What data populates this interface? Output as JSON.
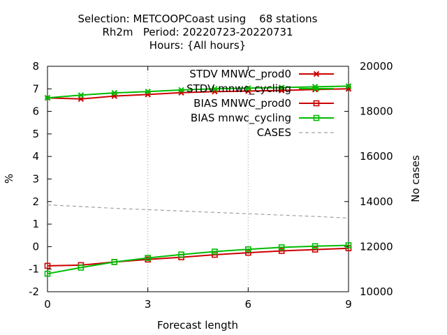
{
  "chart_data": {
    "type": "line",
    "title_lines": [
      "Selection: METCOOPCoast using    68 stations",
      "Rh2m   Period: 20220723-20220731",
      "Hours: {All hours}"
    ],
    "xlabel": "Forecast length",
    "ylabel": "%",
    "y2label": "No cases",
    "xlim": [
      0,
      9
    ],
    "ylim": [
      -2,
      8
    ],
    "y2lim": [
      10000,
      20000
    ],
    "xticks": [
      0,
      3,
      6,
      9
    ],
    "yticks": [
      -2,
      -1,
      0,
      1,
      2,
      3,
      4,
      5,
      6,
      7,
      8
    ],
    "y2ticks": [
      10000,
      12000,
      14000,
      16000,
      18000,
      20000
    ],
    "grid": "dotted at x ticks",
    "legend_position": "top-right",
    "x": [
      0,
      1,
      2,
      3,
      4,
      5,
      6,
      7,
      8,
      9
    ],
    "series": [
      {
        "name": "STDV MNWC_prod0",
        "axis": "y1",
        "color": "#cc0000",
        "marker": "x",
        "dash": "solid",
        "values": [
          6.6,
          6.55,
          6.68,
          6.75,
          6.83,
          6.88,
          6.9,
          6.93,
          6.97,
          7.0
        ]
      },
      {
        "name": "STDV mnwc_cycling",
        "axis": "y1",
        "color": "#00bb00",
        "marker": "x",
        "dash": "solid",
        "values": [
          6.6,
          6.72,
          6.82,
          6.88,
          6.95,
          7.0,
          7.03,
          7.06,
          7.09,
          7.12
        ]
      },
      {
        "name": "BIAS MNWC_prod0",
        "axis": "y1",
        "color": "#cc0000",
        "marker": "square",
        "dash": "solid",
        "values": [
          -0.85,
          -0.82,
          -0.68,
          -0.57,
          -0.47,
          -0.36,
          -0.27,
          -0.19,
          -0.13,
          -0.07
        ]
      },
      {
        "name": "BIAS mnwc_cycling",
        "axis": "y1",
        "color": "#00bb00",
        "marker": "square",
        "dash": "solid",
        "values": [
          -1.2,
          -0.93,
          -0.68,
          -0.5,
          -0.35,
          -0.22,
          -0.12,
          -0.03,
          0.02,
          0.06
        ]
      },
      {
        "name": "CASES",
        "axis": "y2",
        "color": "#a0a0a0",
        "marker": "none",
        "dash": "dashed",
        "values": [
          13850,
          13780,
          13700,
          13640,
          13580,
          13520,
          13460,
          13400,
          13340,
          13270
        ]
      }
    ]
  }
}
